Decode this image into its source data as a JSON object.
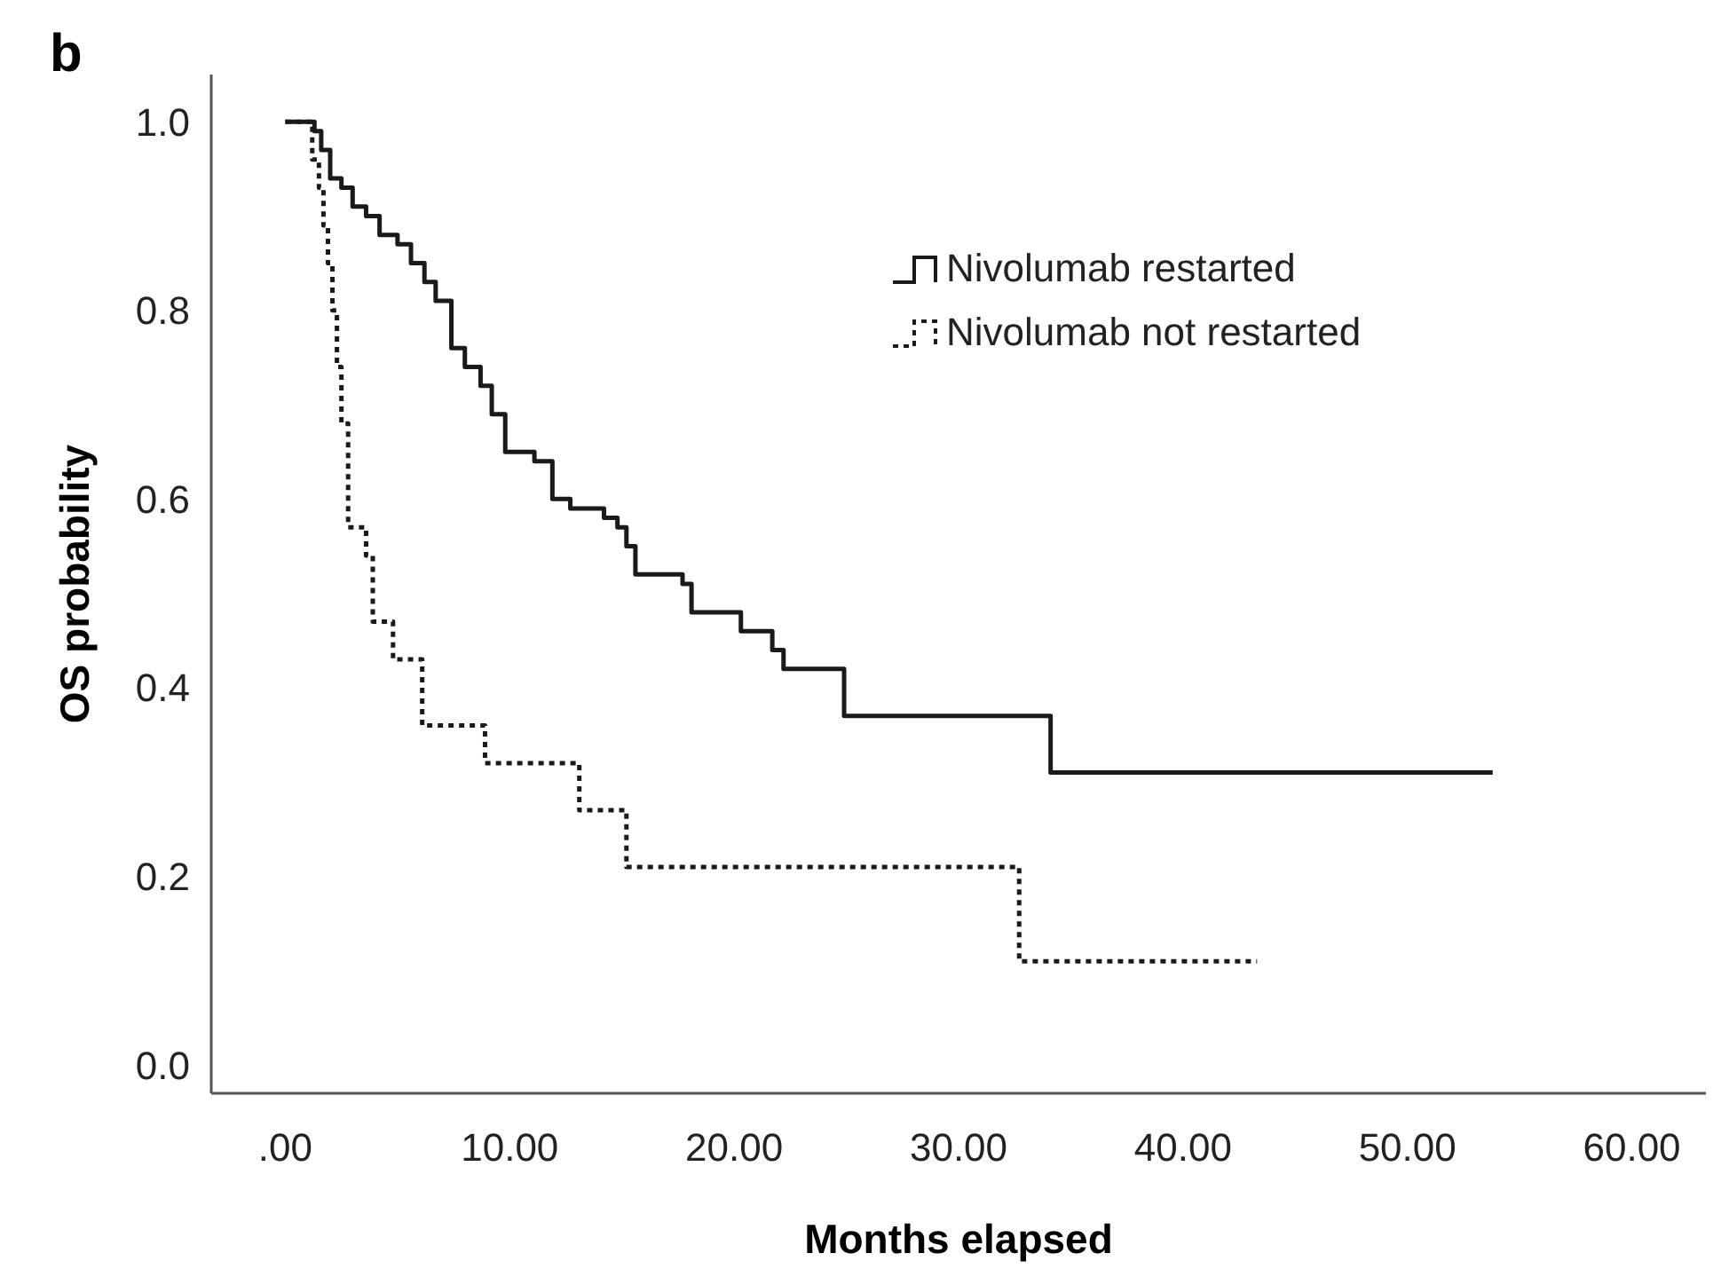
{
  "chart_data": {
    "type": "step",
    "title": "b",
    "xlabel": "Months elapsed",
    "ylabel": "OS probability",
    "xlim": [
      -3.3,
      63.3
    ],
    "ylim": [
      -0.03,
      1.05
    ],
    "xticks": [
      {
        "value": 0,
        "label": ".00"
      },
      {
        "value": 10,
        "label": "10.00"
      },
      {
        "value": 20,
        "label": "20.00"
      },
      {
        "value": 30,
        "label": "30.00"
      },
      {
        "value": 40,
        "label": "40.00"
      },
      {
        "value": 50,
        "label": "50.00"
      },
      {
        "value": 60,
        "label": "60.00"
      }
    ],
    "yticks": [
      {
        "value": 0,
        "label": "0.0"
      },
      {
        "value": 0.2,
        "label": "0.2"
      },
      {
        "value": 0.4,
        "label": "0.4"
      },
      {
        "value": 0.6,
        "label": "0.6"
      },
      {
        "value": 0.8,
        "label": "0.8"
      },
      {
        "value": 1,
        "label": "1.0"
      }
    ],
    "grid": false,
    "legend": "top right",
    "series": [
      {
        "name": "Nivolumab restarted",
        "color": "#1a1a1a",
        "line_style": "solid",
        "x": [
          0,
          1.3,
          1.6,
          2.0,
          2.5,
          3.0,
          3.6,
          4.2,
          5.0,
          5.6,
          6.2,
          6.7,
          7.4,
          8.0,
          8.7,
          9.2,
          9.8,
          11.1,
          11.9,
          12.7,
          14.2,
          14.8,
          15.2,
          15.6,
          17.7,
          18.1,
          20.3,
          21.7,
          22.2,
          24.9,
          34.1,
          53.8
        ],
        "values": [
          1.0,
          0.99,
          0.97,
          0.94,
          0.93,
          0.91,
          0.9,
          0.88,
          0.87,
          0.85,
          0.83,
          0.81,
          0.76,
          0.74,
          0.72,
          0.69,
          0.65,
          0.64,
          0.6,
          0.59,
          0.58,
          0.57,
          0.55,
          0.52,
          0.51,
          0.48,
          0.46,
          0.44,
          0.42,
          0.37,
          0.31,
          0.31
        ]
      },
      {
        "name": "Nivolumab not restarted",
        "color": "#1a1a1a",
        "line_style": "dotted",
        "x": [
          0,
          1.2,
          1.5,
          1.7,
          1.9,
          2.1,
          2.3,
          2.5,
          2.8,
          3.6,
          3.9,
          4.8,
          6.1,
          8.9,
          13.1,
          15.2,
          32.7,
          43.3
        ],
        "values": [
          1.0,
          0.96,
          0.93,
          0.89,
          0.85,
          0.8,
          0.74,
          0.68,
          0.57,
          0.54,
          0.47,
          0.43,
          0.36,
          0.32,
          0.27,
          0.21,
          0.11,
          0.11
        ]
      }
    ]
  }
}
